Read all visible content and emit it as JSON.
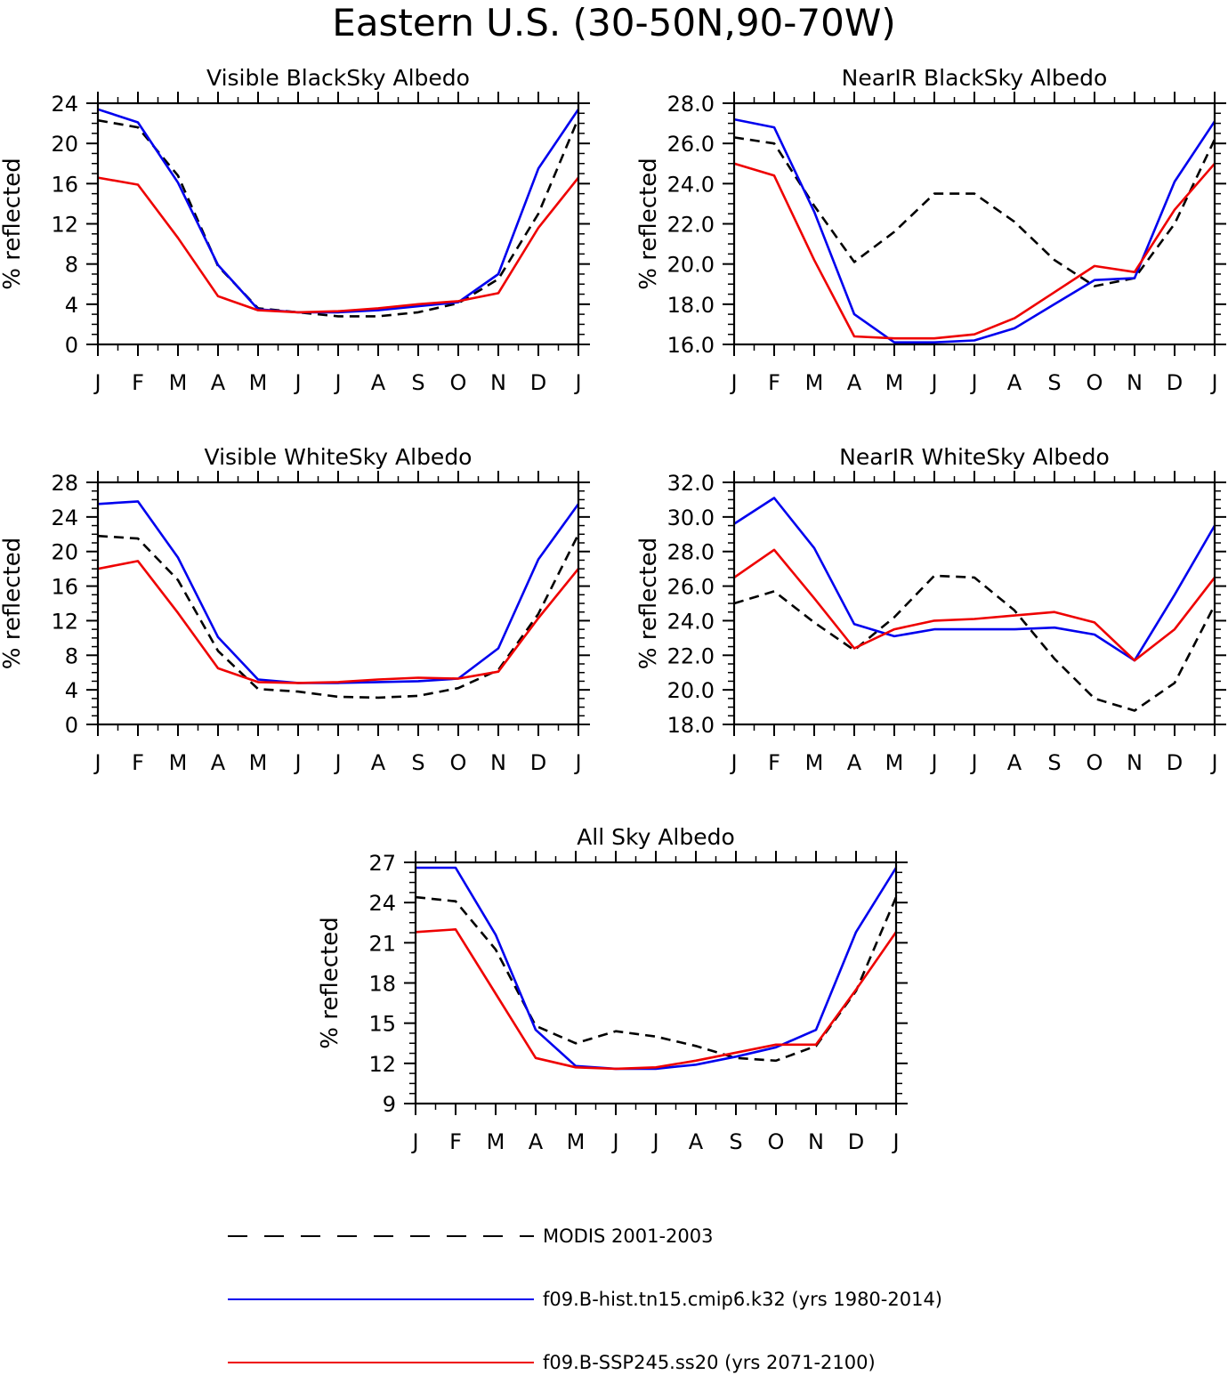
{
  "figure": {
    "title": "Eastern U.S. (30-50N,90-70W)"
  },
  "colors": {
    "modis": "#000000",
    "hist": "#0000ee",
    "ssp": "#ee0000",
    "axis": "#000000"
  },
  "legend": [
    {
      "key": "modis",
      "label": "MODIS 2001-2003",
      "style": "dashed"
    },
    {
      "key": "hist",
      "label": "f09.B-hist.tn15.cmip6.k32 (yrs 1980-2014)",
      "style": "solid"
    },
    {
      "key": "ssp",
      "label": "f09.B-SSP245.ss20 (yrs 2071-2100)",
      "style": "solid"
    }
  ],
  "chart_data": [
    {
      "type": "line",
      "title": "Visible BlackSky Albedo",
      "ylabel": "% reflected",
      "categories": [
        "J",
        "F",
        "M",
        "A",
        "M",
        "J",
        "J",
        "A",
        "S",
        "O",
        "N",
        "D",
        "J"
      ],
      "ylim": [
        0,
        24
      ],
      "yticks": [
        "0",
        "4",
        "8",
        "12",
        "16",
        "20",
        "24"
      ],
      "series": [
        {
          "key": "modis",
          "name": "MODIS 2001-2003",
          "values": [
            22.3,
            21.6,
            16.8,
            7.8,
            3.6,
            3.2,
            2.8,
            2.8,
            3.2,
            4.1,
            6.5,
            13.0,
            22.5
          ]
        },
        {
          "key": "hist",
          "name": "f09.B-hist.tn15.cmip6.k32 (yrs 1980-2014)",
          "values": [
            23.4,
            22.1,
            16.1,
            7.9,
            3.5,
            3.2,
            3.2,
            3.4,
            3.8,
            4.2,
            7.0,
            17.5,
            23.4
          ]
        },
        {
          "key": "ssp",
          "name": "f09.B-SSP245.ss20 (yrs 2071-2100)",
          "values": [
            16.6,
            15.9,
            10.6,
            4.8,
            3.4,
            3.2,
            3.3,
            3.6,
            4.0,
            4.3,
            5.1,
            11.6,
            16.6
          ]
        }
      ]
    },
    {
      "type": "line",
      "title": "NearIR BlackSky Albedo",
      "ylabel": "% reflected",
      "categories": [
        "J",
        "F",
        "M",
        "A",
        "M",
        "J",
        "J",
        "A",
        "S",
        "O",
        "N",
        "D",
        "J"
      ],
      "ylim": [
        16,
        28
      ],
      "yticks": [
        "16.0",
        "18.0",
        "20.0",
        "22.0",
        "24.0",
        "26.0",
        "28.0"
      ],
      "series": [
        {
          "key": "modis",
          "name": "MODIS 2001-2003",
          "values": [
            26.3,
            26.0,
            22.9,
            20.1,
            21.6,
            23.5,
            23.5,
            22.1,
            20.2,
            18.9,
            19.3,
            22.0,
            26.2
          ]
        },
        {
          "key": "hist",
          "name": "f09.B-hist.tn15.cmip6.k32 (yrs 1980-2014)",
          "values": [
            27.2,
            26.8,
            22.6,
            17.5,
            16.1,
            16.1,
            16.2,
            16.8,
            18.0,
            19.2,
            19.3,
            24.1,
            27.1
          ]
        },
        {
          "key": "ssp",
          "name": "f09.B-SSP245.ss20 (yrs 2071-2100)",
          "values": [
            25.0,
            24.4,
            20.2,
            16.4,
            16.3,
            16.3,
            16.5,
            17.3,
            18.6,
            19.9,
            19.6,
            22.7,
            25.0
          ]
        }
      ]
    },
    {
      "type": "line",
      "title": "Visible WhiteSky Albedo",
      "ylabel": "% reflected",
      "categories": [
        "J",
        "F",
        "M",
        "A",
        "M",
        "J",
        "J",
        "A",
        "S",
        "O",
        "N",
        "D",
        "J"
      ],
      "ylim": [
        0,
        28
      ],
      "yticks": [
        "0",
        "4",
        "8",
        "12",
        "16",
        "20",
        "24",
        "28"
      ],
      "series": [
        {
          "key": "modis",
          "name": "MODIS 2001-2003",
          "values": [
            21.8,
            21.5,
            16.7,
            8.5,
            4.1,
            3.8,
            3.2,
            3.1,
            3.3,
            4.2,
            6.3,
            12.8,
            22.0
          ]
        },
        {
          "key": "hist",
          "name": "f09.B-hist.tn15.cmip6.k32 (yrs 1980-2014)",
          "values": [
            25.5,
            25.8,
            19.3,
            10.1,
            5.2,
            4.8,
            4.8,
            4.9,
            5.0,
            5.3,
            8.8,
            19.1,
            25.5
          ]
        },
        {
          "key": "ssp",
          "name": "f09.B-SSP245.ss20 (yrs 2071-2100)",
          "values": [
            18.0,
            18.9,
            12.9,
            6.5,
            4.9,
            4.8,
            4.9,
            5.2,
            5.4,
            5.3,
            6.1,
            12.3,
            18.0
          ]
        }
      ]
    },
    {
      "type": "line",
      "title": "NearIR WhiteSky Albedo",
      "ylabel": "% reflected",
      "categories": [
        "J",
        "F",
        "M",
        "A",
        "M",
        "J",
        "J",
        "A",
        "S",
        "O",
        "N",
        "D",
        "J"
      ],
      "ylim": [
        18,
        32
      ],
      "yticks": [
        "18.0",
        "20.0",
        "22.0",
        "24.0",
        "26.0",
        "28.0",
        "30.0",
        "32.0"
      ],
      "series": [
        {
          "key": "modis",
          "name": "MODIS 2001-2003",
          "values": [
            25.0,
            25.7,
            23.9,
            22.3,
            24.2,
            26.6,
            26.5,
            24.6,
            21.8,
            19.5,
            18.8,
            20.4,
            24.9
          ]
        },
        {
          "key": "hist",
          "name": "f09.B-hist.tn15.cmip6.k32 (yrs 1980-2014)",
          "values": [
            29.6,
            31.1,
            28.2,
            23.8,
            23.1,
            23.5,
            23.5,
            23.5,
            23.6,
            23.2,
            21.7,
            25.5,
            29.5
          ]
        },
        {
          "key": "ssp",
          "name": "f09.B-SSP245.ss20 (yrs 2071-2100)",
          "values": [
            26.5,
            28.1,
            25.3,
            22.4,
            23.5,
            24.0,
            24.1,
            24.3,
            24.5,
            23.9,
            21.7,
            23.5,
            26.5
          ]
        }
      ]
    },
    {
      "type": "line",
      "title": "All Sky Albedo",
      "ylabel": "% reflected",
      "categories": [
        "J",
        "F",
        "M",
        "A",
        "M",
        "J",
        "J",
        "A",
        "S",
        "O",
        "N",
        "D",
        "J"
      ],
      "ylim": [
        9,
        27
      ],
      "yticks": [
        "9",
        "12",
        "15",
        "18",
        "21",
        "24",
        "27"
      ],
      "series": [
        {
          "key": "modis",
          "name": "MODIS 2001-2003",
          "values": [
            24.4,
            24.1,
            20.5,
            14.8,
            13.5,
            14.4,
            14.0,
            13.3,
            12.4,
            12.2,
            13.3,
            17.4,
            24.4
          ]
        },
        {
          "key": "hist",
          "name": "f09.B-hist.tn15.cmip6.k32 (yrs 1980-2014)",
          "values": [
            26.6,
            26.6,
            21.6,
            14.5,
            11.8,
            11.6,
            11.6,
            11.9,
            12.5,
            13.2,
            14.5,
            21.8,
            26.6
          ]
        },
        {
          "key": "ssp",
          "name": "f09.B-SSP245.ss20 (yrs 2071-2100)",
          "values": [
            21.8,
            22.0,
            17.2,
            12.4,
            11.7,
            11.6,
            11.7,
            12.2,
            12.8,
            13.4,
            13.4,
            17.5,
            21.8
          ]
        }
      ]
    }
  ]
}
